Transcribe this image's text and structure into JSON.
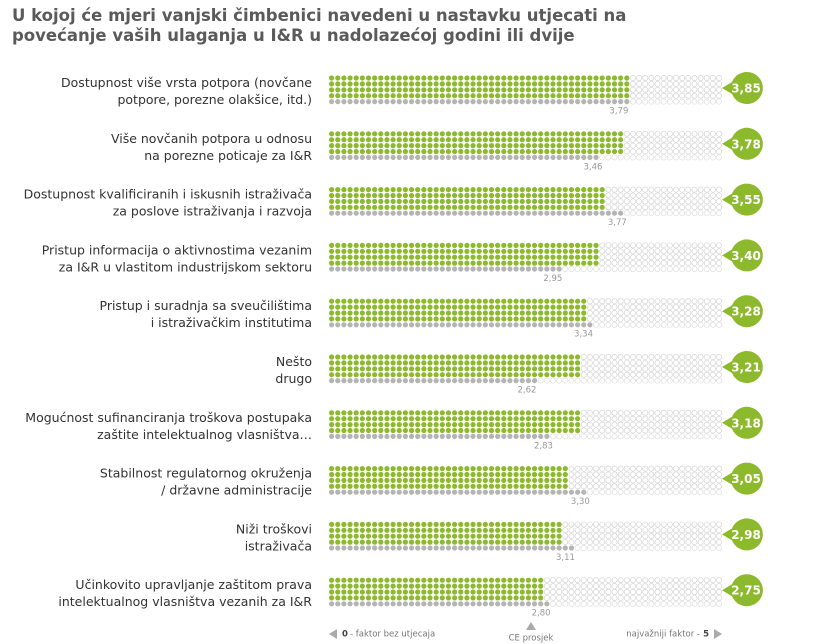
{
  "chart_data": {
    "type": "dotbar",
    "title": "U kojoj će mjeri vanjski čimbenici navedeni u nastavku utjecati na\npovećanje vaših ulaganja u I&R u nadolazećoj godini ili dvije",
    "categories": [
      "Dostupnost više vrsta potpora (novčane\npotpore, porezne olakšice, itd.)",
      "Više novčanih potpora u odnosu\nna porezne poticaje za I&R",
      "Dostupnost kvalificiranih i iskusnih istraživača\nza poslove istraživanja i razvoja",
      "Pristup informacija o aktivnostima vezanim\nza I&R u vlastitom industrijskom sektoru",
      "Pristup i suradnja sa sveučilištima\ni istraživačkim institutima",
      "Nešto\ndrugo",
      "Mogućnost sufinanciranja troškova postupaka\nzaštite intelektualnog vlasništva…",
      "Stabilnost regulatornog okruženja\n/ državne administracije",
      "Niži troškovi\nistraživača",
      "Učinkovito upravljanje zaštitom prava\nintelektualnog vlasništva vezanih za I&R"
    ],
    "series": [
      {
        "color": "#8dba2d",
        "values": [
          3.85,
          3.78,
          3.55,
          3.4,
          3.28,
          3.21,
          3.18,
          3.05,
          2.98,
          2.75
        ],
        "value_labels": [
          "3,85",
          "3,78",
          "3,55",
          "3,40",
          "3,28",
          "3,21",
          "3,18",
          "3,05",
          "2,98",
          "2,75"
        ]
      },
      {
        "name": "CE prosjek",
        "color": "#b4b4b4",
        "values": [
          3.79,
          3.46,
          3.77,
          2.95,
          3.34,
          2.62,
          2.83,
          3.3,
          3.11,
          2.8
        ],
        "value_labels": [
          "3,79",
          "3,46",
          "3,77",
          "2,95",
          "3,34",
          "2,62",
          "2,83",
          "3,30",
          "3,11",
          "2,80"
        ]
      }
    ],
    "xlim": [
      0,
      5
    ],
    "xticks": [
      0,
      5
    ],
    "xlabel_min": "- faktor bez utjecaja",
    "xlabel_max": "najvažniji faktor -"
  }
}
